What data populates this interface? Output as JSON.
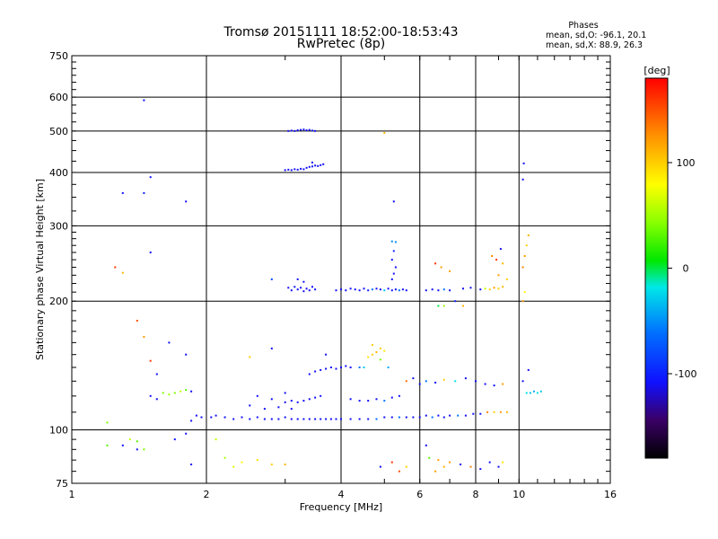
{
  "header": {
    "title_line1": "Tromsø 20151111 18:52:00-18:53:43",
    "title_line2": "RwPretec (8p)"
  },
  "stats": {
    "heading": "Phases",
    "o_line": "mean, sd,O: -96.1, 20.1",
    "x_line": "mean, sd,X:  88.9, 26.3"
  },
  "chart_data": {
    "type": "scatter",
    "xlabel": "Frequency [MHz]",
    "ylabel": "Stationary phase Virtual Height [km]",
    "x_scale": "log",
    "y_scale": "log",
    "xlim": [
      1,
      16
    ],
    "ylim": [
      75,
      750
    ],
    "x_ticks": [
      1,
      2,
      4,
      6,
      8,
      10,
      16
    ],
    "y_ticks": [
      75,
      100,
      200,
      300,
      400,
      500,
      600,
      750
    ],
    "grid": true,
    "colorbar": {
      "label": "[deg]",
      "range": [
        -180,
        180
      ],
      "ticks": [
        100,
        0,
        -100
      ]
    },
    "points": [
      {
        "x": 3.05,
        "y": 500,
        "c": -110
      },
      {
        "x": 3.1,
        "y": 501,
        "c": -110
      },
      {
        "x": 3.15,
        "y": 500,
        "c": -110
      },
      {
        "x": 3.2,
        "y": 502,
        "c": -110
      },
      {
        "x": 3.25,
        "y": 503,
        "c": -110
      },
      {
        "x": 3.3,
        "y": 504,
        "c": -110
      },
      {
        "x": 3.35,
        "y": 502,
        "c": -110
      },
      {
        "x": 3.4,
        "y": 503,
        "c": -110
      },
      {
        "x": 3.45,
        "y": 501,
        "c": -110
      },
      {
        "x": 3.5,
        "y": 500,
        "c": -110
      },
      {
        "x": 3.0,
        "y": 405,
        "c": -110
      },
      {
        "x": 3.05,
        "y": 406,
        "c": -110
      },
      {
        "x": 3.1,
        "y": 405,
        "c": -110
      },
      {
        "x": 3.15,
        "y": 407,
        "c": -110
      },
      {
        "x": 3.2,
        "y": 406,
        "c": -110
      },
      {
        "x": 3.25,
        "y": 408,
        "c": -110
      },
      {
        "x": 3.3,
        "y": 407,
        "c": -110
      },
      {
        "x": 3.35,
        "y": 410,
        "c": -110
      },
      {
        "x": 3.4,
        "y": 412,
        "c": -110
      },
      {
        "x": 3.45,
        "y": 413,
        "c": -110
      },
      {
        "x": 3.5,
        "y": 415,
        "c": -110
      },
      {
        "x": 3.55,
        "y": 414,
        "c": -110
      },
      {
        "x": 3.6,
        "y": 416,
        "c": -110
      },
      {
        "x": 3.65,
        "y": 418,
        "c": -110
      },
      {
        "x": 3.45,
        "y": 422,
        "c": -110
      },
      {
        "x": 1.45,
        "y": 590,
        "c": -110
      },
      {
        "x": 1.5,
        "y": 390,
        "c": -110
      },
      {
        "x": 1.3,
        "y": 358,
        "c": -110
      },
      {
        "x": 1.45,
        "y": 358,
        "c": -100
      },
      {
        "x": 1.8,
        "y": 342,
        "c": -110
      },
      {
        "x": 5.25,
        "y": 342,
        "c": -110
      },
      {
        "x": 10.25,
        "y": 420,
        "c": -110
      },
      {
        "x": 10.2,
        "y": 385,
        "c": -110
      },
      {
        "x": 1.5,
        "y": 260,
        "c": -110
      },
      {
        "x": 3.05,
        "y": 215,
        "c": -110
      },
      {
        "x": 3.1,
        "y": 212,
        "c": -110
      },
      {
        "x": 3.15,
        "y": 216,
        "c": -110
      },
      {
        "x": 3.2,
        "y": 213,
        "c": -110
      },
      {
        "x": 3.25,
        "y": 215,
        "c": -110
      },
      {
        "x": 3.3,
        "y": 211,
        "c": -110
      },
      {
        "x": 3.35,
        "y": 214,
        "c": -110
      },
      {
        "x": 3.4,
        "y": 212,
        "c": -110
      },
      {
        "x": 3.45,
        "y": 216,
        "c": -110
      },
      {
        "x": 3.5,
        "y": 213,
        "c": -110
      },
      {
        "x": 3.2,
        "y": 225,
        "c": -110
      },
      {
        "x": 3.3,
        "y": 222,
        "c": -110
      },
      {
        "x": 3.9,
        "y": 212,
        "c": -110
      },
      {
        "x": 4.0,
        "y": 213,
        "c": -110
      },
      {
        "x": 4.1,
        "y": 212,
        "c": -110
      },
      {
        "x": 4.2,
        "y": 214,
        "c": -110
      },
      {
        "x": 4.3,
        "y": 213,
        "c": -110
      },
      {
        "x": 4.4,
        "y": 212,
        "c": -110
      },
      {
        "x": 4.5,
        "y": 214,
        "c": -110
      },
      {
        "x": 4.6,
        "y": 212,
        "c": -100
      },
      {
        "x": 4.7,
        "y": 213,
        "c": -60
      },
      {
        "x": 4.8,
        "y": 214,
        "c": -110
      },
      {
        "x": 4.9,
        "y": 213,
        "c": -110
      },
      {
        "x": 5.0,
        "y": 212,
        "c": -30
      },
      {
        "x": 5.1,
        "y": 214,
        "c": -110
      },
      {
        "x": 5.2,
        "y": 212,
        "c": -110
      },
      {
        "x": 5.3,
        "y": 213,
        "c": -110
      },
      {
        "x": 5.4,
        "y": 212,
        "c": -60
      },
      {
        "x": 5.5,
        "y": 213,
        "c": -110
      },
      {
        "x": 5.6,
        "y": 212,
        "c": -110
      },
      {
        "x": 5.2,
        "y": 225,
        "c": -110
      },
      {
        "x": 5.25,
        "y": 232,
        "c": -110
      },
      {
        "x": 5.3,
        "y": 240,
        "c": -110
      },
      {
        "x": 5.2,
        "y": 250,
        "c": -110
      },
      {
        "x": 5.25,
        "y": 262,
        "c": -100
      },
      {
        "x": 5.3,
        "y": 275,
        "c": -50
      },
      {
        "x": 5.2,
        "y": 276,
        "c": -50
      },
      {
        "x": 6.2,
        "y": 212,
        "c": -110
      },
      {
        "x": 6.4,
        "y": 213,
        "c": -110
      },
      {
        "x": 6.6,
        "y": 212,
        "c": -110
      },
      {
        "x": 6.8,
        "y": 213,
        "c": -60
      },
      {
        "x": 7.0,
        "y": 212,
        "c": -110
      },
      {
        "x": 7.5,
        "y": 214,
        "c": -110
      },
      {
        "x": 7.8,
        "y": 215,
        "c": -110
      },
      {
        "x": 8.2,
        "y": 213,
        "c": -110
      },
      {
        "x": 8.4,
        "y": 214,
        "c": 60
      },
      {
        "x": 8.6,
        "y": 213,
        "c": 100
      },
      {
        "x": 8.8,
        "y": 215,
        "c": 120
      },
      {
        "x": 9.0,
        "y": 214,
        "c": 100
      },
      {
        "x": 9.2,
        "y": 216,
        "c": 110
      },
      {
        "x": 6.5,
        "y": 245,
        "c": 160
      },
      {
        "x": 6.7,
        "y": 240,
        "c": 120
      },
      {
        "x": 7.0,
        "y": 235,
        "c": 120
      },
      {
        "x": 6.6,
        "y": 195,
        "c": 0
      },
      {
        "x": 6.8,
        "y": 195,
        "c": 50
      },
      {
        "x": 7.2,
        "y": 200,
        "c": -100
      },
      {
        "x": 7.5,
        "y": 195,
        "c": 110
      },
      {
        "x": 8.7,
        "y": 255,
        "c": 130
      },
      {
        "x": 8.9,
        "y": 250,
        "c": 160
      },
      {
        "x": 9.1,
        "y": 265,
        "c": -110
      },
      {
        "x": 9.2,
        "y": 245,
        "c": 110
      },
      {
        "x": 9.0,
        "y": 230,
        "c": 120
      },
      {
        "x": 9.4,
        "y": 225,
        "c": 100
      },
      {
        "x": 10.2,
        "y": 240,
        "c": 130
      },
      {
        "x": 10.3,
        "y": 255,
        "c": 120
      },
      {
        "x": 10.4,
        "y": 270,
        "c": 100
      },
      {
        "x": 10.5,
        "y": 285,
        "c": 110
      },
      {
        "x": 2.1,
        "y": 108,
        "c": -110
      },
      {
        "x": 2.2,
        "y": 107,
        "c": -110
      },
      {
        "x": 2.3,
        "y": 106,
        "c": -110
      },
      {
        "x": 2.4,
        "y": 107,
        "c": -110
      },
      {
        "x": 2.5,
        "y": 106,
        "c": -110
      },
      {
        "x": 2.6,
        "y": 107,
        "c": -110
      },
      {
        "x": 2.7,
        "y": 106,
        "c": -110
      },
      {
        "x": 2.8,
        "y": 106,
        "c": -110
      },
      {
        "x": 2.9,
        "y": 106,
        "c": -110
      },
      {
        "x": 3.0,
        "y": 107,
        "c": -110
      },
      {
        "x": 3.1,
        "y": 106,
        "c": -110
      },
      {
        "x": 3.2,
        "y": 106,
        "c": -110
      },
      {
        "x": 3.3,
        "y": 106,
        "c": -110
      },
      {
        "x": 3.4,
        "y": 106,
        "c": -110
      },
      {
        "x": 3.5,
        "y": 106,
        "c": -110
      },
      {
        "x": 3.6,
        "y": 106,
        "c": -110
      },
      {
        "x": 3.7,
        "y": 106,
        "c": -110
      },
      {
        "x": 3.8,
        "y": 106,
        "c": -110
      },
      {
        "x": 3.9,
        "y": 106,
        "c": -110
      },
      {
        "x": 4.0,
        "y": 106,
        "c": -110
      },
      {
        "x": 4.2,
        "y": 106,
        "c": -110
      },
      {
        "x": 4.4,
        "y": 106,
        "c": -110
      },
      {
        "x": 4.6,
        "y": 106,
        "c": -110
      },
      {
        "x": 4.8,
        "y": 106,
        "c": -60
      },
      {
        "x": 5.0,
        "y": 107,
        "c": -110
      },
      {
        "x": 5.2,
        "y": 107,
        "c": -110
      },
      {
        "x": 5.4,
        "y": 107,
        "c": -60
      },
      {
        "x": 5.6,
        "y": 107,
        "c": -110
      },
      {
        "x": 5.8,
        "y": 107,
        "c": -110
      },
      {
        "x": 6.0,
        "y": 107,
        "c": -110
      },
      {
        "x": 6.2,
        "y": 108,
        "c": -110
      },
      {
        "x": 6.4,
        "y": 107,
        "c": -60
      },
      {
        "x": 6.6,
        "y": 108,
        "c": -110
      },
      {
        "x": 6.8,
        "y": 107,
        "c": -110
      },
      {
        "x": 7.0,
        "y": 108,
        "c": -110
      },
      {
        "x": 7.3,
        "y": 108,
        "c": -60
      },
      {
        "x": 7.6,
        "y": 108,
        "c": -110
      },
      {
        "x": 7.9,
        "y": 109,
        "c": -110
      },
      {
        "x": 8.2,
        "y": 109,
        "c": -110
      },
      {
        "x": 8.5,
        "y": 110,
        "c": 130
      },
      {
        "x": 8.8,
        "y": 110,
        "c": 100
      },
      {
        "x": 9.1,
        "y": 110,
        "c": 120
      },
      {
        "x": 9.4,
        "y": 110,
        "c": 110
      },
      {
        "x": 1.85,
        "y": 105,
        "c": -110
      },
      {
        "x": 1.9,
        "y": 108,
        "c": -110
      },
      {
        "x": 1.95,
        "y": 107,
        "c": -110
      },
      {
        "x": 2.05,
        "y": 107,
        "c": -110
      },
      {
        "x": 3.4,
        "y": 135,
        "c": -110
      },
      {
        "x": 3.5,
        "y": 137,
        "c": -110
      },
      {
        "x": 3.6,
        "y": 138,
        "c": -110
      },
      {
        "x": 3.7,
        "y": 139,
        "c": -110
      },
      {
        "x": 3.8,
        "y": 140,
        "c": -110
      },
      {
        "x": 3.9,
        "y": 139,
        "c": -110
      },
      {
        "x": 4.0,
        "y": 140,
        "c": -110
      },
      {
        "x": 4.1,
        "y": 141,
        "c": -110
      },
      {
        "x": 4.2,
        "y": 140,
        "c": -110
      },
      {
        "x": 4.4,
        "y": 140,
        "c": -60
      },
      {
        "x": 4.5,
        "y": 140,
        "c": -30
      },
      {
        "x": 4.6,
        "y": 148,
        "c": 90
      },
      {
        "x": 4.7,
        "y": 150,
        "c": 100
      },
      {
        "x": 4.8,
        "y": 152,
        "c": 110
      },
      {
        "x": 4.9,
        "y": 155,
        "c": 100
      },
      {
        "x": 5.0,
        "y": 153,
        "c": 90
      },
      {
        "x": 4.7,
        "y": 158,
        "c": 100
      },
      {
        "x": 4.9,
        "y": 146,
        "c": 40
      },
      {
        "x": 5.1,
        "y": 140,
        "c": -40
      },
      {
        "x": 3.4,
        "y": 118,
        "c": -110
      },
      {
        "x": 3.5,
        "y": 119,
        "c": -110
      },
      {
        "x": 3.6,
        "y": 120,
        "c": -110
      },
      {
        "x": 3.3,
        "y": 117,
        "c": -110
      },
      {
        "x": 3.2,
        "y": 116,
        "c": -110
      },
      {
        "x": 3.1,
        "y": 117,
        "c": -110
      },
      {
        "x": 3.0,
        "y": 116,
        "c": -110
      },
      {
        "x": 4.2,
        "y": 118,
        "c": -110
      },
      {
        "x": 4.4,
        "y": 117,
        "c": -110
      },
      {
        "x": 4.6,
        "y": 117,
        "c": -110
      },
      {
        "x": 4.8,
        "y": 118,
        "c": -110
      },
      {
        "x": 5.0,
        "y": 117,
        "c": -60
      },
      {
        "x": 5.2,
        "y": 119,
        "c": -110
      },
      {
        "x": 5.4,
        "y": 120,
        "c": -110
      },
      {
        "x": 2.6,
        "y": 120,
        "c": -110
      },
      {
        "x": 2.8,
        "y": 118,
        "c": -110
      },
      {
        "x": 3.0,
        "y": 122,
        "c": -110
      },
      {
        "x": 2.5,
        "y": 114,
        "c": -110
      },
      {
        "x": 2.7,
        "y": 112,
        "c": -110
      },
      {
        "x": 2.9,
        "y": 113,
        "c": -110
      },
      {
        "x": 3.1,
        "y": 112,
        "c": -110
      },
      {
        "x": 1.6,
        "y": 122,
        "c": 40
      },
      {
        "x": 1.65,
        "y": 121,
        "c": 50
      },
      {
        "x": 1.7,
        "y": 122,
        "c": 40
      },
      {
        "x": 1.75,
        "y": 123,
        "c": 60
      },
      {
        "x": 1.8,
        "y": 124,
        "c": 30
      },
      {
        "x": 1.85,
        "y": 123,
        "c": -110
      },
      {
        "x": 1.5,
        "y": 120,
        "c": -110
      },
      {
        "x": 1.55,
        "y": 118,
        "c": -110
      },
      {
        "x": 5.6,
        "y": 130,
        "c": 140
      },
      {
        "x": 5.8,
        "y": 132,
        "c": -110
      },
      {
        "x": 6.0,
        "y": 128,
        "c": -110
      },
      {
        "x": 6.2,
        "y": 130,
        "c": -60
      },
      {
        "x": 6.5,
        "y": 129,
        "c": -110
      },
      {
        "x": 6.8,
        "y": 131,
        "c": 100
      },
      {
        "x": 7.2,
        "y": 130,
        "c": -20
      },
      {
        "x": 7.6,
        "y": 132,
        "c": -110
      },
      {
        "x": 8.0,
        "y": 130,
        "c": -110
      },
      {
        "x": 8.4,
        "y": 128,
        "c": -110
      },
      {
        "x": 8.8,
        "y": 127,
        "c": -110
      },
      {
        "x": 9.2,
        "y": 128,
        "c": 120
      },
      {
        "x": 10.4,
        "y": 122,
        "c": -20
      },
      {
        "x": 10.6,
        "y": 122,
        "c": -30
      },
      {
        "x": 10.8,
        "y": 123,
        "c": -40
      },
      {
        "x": 11.0,
        "y": 122,
        "c": -20
      },
      {
        "x": 11.2,
        "y": 123,
        "c": -30
      },
      {
        "x": 10.2,
        "y": 130,
        "c": -110
      },
      {
        "x": 10.5,
        "y": 138,
        "c": -110
      },
      {
        "x": 6.6,
        "y": 85,
        "c": 120
      },
      {
        "x": 6.8,
        "y": 82,
        "c": 110
      },
      {
        "x": 7.0,
        "y": 84,
        "c": 120
      },
      {
        "x": 7.4,
        "y": 83,
        "c": -110
      },
      {
        "x": 7.8,
        "y": 82,
        "c": 130
      },
      {
        "x": 8.2,
        "y": 81,
        "c": -110
      },
      {
        "x": 8.6,
        "y": 84,
        "c": -110
      },
      {
        "x": 9.0,
        "y": 82,
        "c": -110
      },
      {
        "x": 9.2,
        "y": 84,
        "c": 90
      },
      {
        "x": 5.6,
        "y": 82,
        "c": 100
      },
      {
        "x": 5.4,
        "y": 80,
        "c": 150
      },
      {
        "x": 5.2,
        "y": 84,
        "c": 160
      },
      {
        "x": 4.9,
        "y": 82,
        "c": -110
      },
      {
        "x": 6.2,
        "y": 92,
        "c": -110
      },
      {
        "x": 6.3,
        "y": 86,
        "c": 30
      },
      {
        "x": 6.5,
        "y": 80,
        "c": 120
      },
      {
        "x": 1.2,
        "y": 104,
        "c": 40
      },
      {
        "x": 1.2,
        "y": 92,
        "c": 30
      },
      {
        "x": 1.3,
        "y": 92,
        "c": -110
      },
      {
        "x": 1.35,
        "y": 95,
        "c": 60
      },
      {
        "x": 1.4,
        "y": 94,
        "c": 30
      },
      {
        "x": 1.45,
        "y": 90,
        "c": 40
      },
      {
        "x": 1.4,
        "y": 90,
        "c": -110
      },
      {
        "x": 1.7,
        "y": 95,
        "c": -110
      },
      {
        "x": 1.8,
        "y": 98,
        "c": -110
      },
      {
        "x": 1.85,
        "y": 83,
        "c": -110
      },
      {
        "x": 2.1,
        "y": 95,
        "c": 60
      },
      {
        "x": 2.2,
        "y": 86,
        "c": 50
      },
      {
        "x": 2.3,
        "y": 82,
        "c": 70
      },
      {
        "x": 2.4,
        "y": 84,
        "c": 80
      },
      {
        "x": 2.6,
        "y": 85,
        "c": 90
      },
      {
        "x": 2.8,
        "y": 83,
        "c": 100
      },
      {
        "x": 3.0,
        "y": 83,
        "c": 110
      },
      {
        "x": 1.4,
        "y": 180,
        "c": 150
      },
      {
        "x": 1.45,
        "y": 165,
        "c": 120
      },
      {
        "x": 1.5,
        "y": 145,
        "c": 160
      },
      {
        "x": 1.55,
        "y": 135,
        "c": -110
      },
      {
        "x": 1.65,
        "y": 160,
        "c": -110
      },
      {
        "x": 1.8,
        "y": 150,
        "c": -110
      },
      {
        "x": 2.5,
        "y": 148,
        "c": 100
      },
      {
        "x": 2.8,
        "y": 155,
        "c": -110
      },
      {
        "x": 3.7,
        "y": 150,
        "c": -110
      },
      {
        "x": 1.25,
        "y": 240,
        "c": 160
      },
      {
        "x": 1.3,
        "y": 233,
        "c": 110
      },
      {
        "x": 2.8,
        "y": 225,
        "c": -80
      },
      {
        "x": 5.0,
        "y": 495,
        "c": 110
      },
      {
        "x": 10.2,
        "y": 200,
        "c": 120
      },
      {
        "x": 10.3,
        "y": 210,
        "c": 80
      }
    ]
  }
}
